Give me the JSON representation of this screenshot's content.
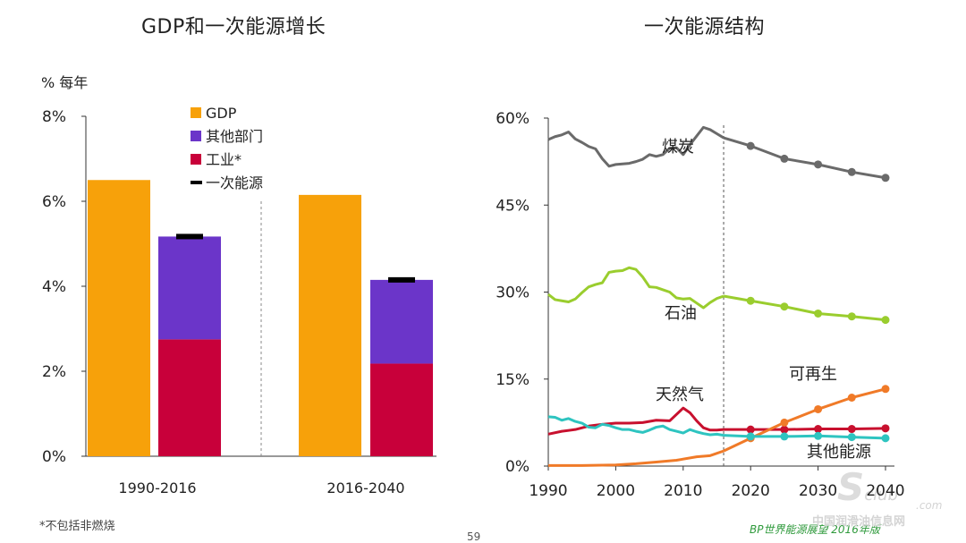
{
  "left": {
    "title": "GDP和一次能源增长",
    "unit": "% 每年",
    "footnote": "*不包括非燃烧"
  },
  "right": {
    "title": "一次能源结构"
  },
  "source": "BP世界能源展望 2016年版",
  "page_number": "59",
  "watermark": {
    "logo": "S",
    "logo_suffix": "club",
    "logo_domain": ".com",
    "text": "中国润滑油信息网"
  },
  "colors": {
    "gdp": "#F7A10A",
    "other": "#6B35C9",
    "industry": "#C8003A",
    "primary": "#000000",
    "coal": "#6a6a6a",
    "oil": "#9ACD2E",
    "gas": "#C8102E",
    "renew": "#F07A28",
    "others": "#2EC4C0"
  },
  "chart_data": [
    {
      "type": "bar",
      "title": "GDP和一次能源增长",
      "ylabel": "% 每年",
      "ylim": [
        0,
        8
      ],
      "yticks": [
        0,
        2,
        4,
        6,
        8
      ],
      "ytick_labels": [
        "0%",
        "2%",
        "4%",
        "6%",
        "8%"
      ],
      "groups": [
        "1990-2016",
        "2016-2040"
      ],
      "legend": [
        "GDP",
        "其他部门",
        "工业*",
        "一次能源"
      ],
      "series": [
        {
          "name": "GDP",
          "values": [
            6.5,
            6.15
          ]
        },
        {
          "name": "工业*",
          "values": [
            2.75,
            2.18
          ]
        },
        {
          "name": "其他部门",
          "values": [
            2.42,
            1.97
          ]
        },
        {
          "name": "一次能源",
          "values": [
            5.17,
            4.15
          ]
        }
      ]
    },
    {
      "type": "line",
      "title": "一次能源结构",
      "ylim": [
        0,
        60
      ],
      "xlim": [
        1990,
        2040
      ],
      "yticks": [
        0,
        15,
        30,
        45,
        60
      ],
      "ytick_labels": [
        "0%",
        "15%",
        "30%",
        "45%",
        "60%"
      ],
      "xticks": [
        1990,
        2000,
        2010,
        2020,
        2030,
        2040
      ],
      "xtick_labels": [
        "1990",
        "2000",
        "2010",
        "2020",
        "2030",
        "2040"
      ],
      "divider_year": 2016,
      "series": [
        {
          "name": "煤炭",
          "label": "煤炭",
          "hist_x": [
            1990,
            1991,
            1992,
            1993,
            1994,
            1995,
            1996,
            1997,
            1998,
            1999,
            2000,
            2001,
            2002,
            2003,
            2004,
            2005,
            2006,
            2007,
            2008,
            2009,
            2010,
            2011,
            2012,
            2013,
            2014,
            2015,
            2016
          ],
          "hist_y": [
            56.3,
            56.8,
            57.1,
            57.6,
            56.4,
            55.8,
            55.1,
            54.7,
            53.0,
            51.7,
            52.0,
            52.1,
            52.2,
            52.5,
            52.9,
            53.7,
            53.4,
            53.7,
            54.8,
            54.9,
            53.7,
            55.4,
            56.9,
            58.4,
            58.0,
            57.3,
            56.6
          ],
          "proj_x": [
            2016,
            2020,
            2025,
            2030,
            2035,
            2040
          ],
          "proj_y": [
            56.6,
            55.2,
            53.0,
            52.0,
            50.7,
            49.7
          ]
        },
        {
          "name": "石油",
          "label": "石油",
          "hist_x": [
            1990,
            1991,
            1992,
            1993,
            1994,
            1995,
            1996,
            1997,
            1998,
            1999,
            2000,
            2001,
            2002,
            2003,
            2004,
            2005,
            2006,
            2007,
            2008,
            2009,
            2010,
            2011,
            2012,
            2013,
            2014,
            2015,
            2016
          ],
          "hist_y": [
            29.6,
            28.7,
            28.5,
            28.3,
            28.8,
            29.9,
            30.9,
            31.3,
            31.6,
            33.4,
            33.6,
            33.7,
            34.2,
            33.9,
            32.6,
            30.9,
            30.8,
            30.4,
            30.0,
            29.0,
            28.8,
            28.9,
            28.1,
            27.3,
            28.2,
            28.9,
            29.3
          ],
          "proj_x": [
            2016,
            2020,
            2025,
            2030,
            2035,
            2040
          ],
          "proj_y": [
            29.3,
            28.5,
            27.5,
            26.3,
            25.8,
            25.2
          ]
        },
        {
          "name": "天然气",
          "label": "天然气",
          "hist_x": [
            1990,
            1992,
            1994,
            1996,
            1998,
            2000,
            2002,
            2004,
            2006,
            2008,
            2009,
            2010,
            2011,
            2012,
            2013,
            2014,
            2015,
            2016
          ],
          "hist_y": [
            5.5,
            6.0,
            6.3,
            6.9,
            7.2,
            7.4,
            7.4,
            7.5,
            7.9,
            7.8,
            8.9,
            10.0,
            9.2,
            7.8,
            6.6,
            6.2,
            6.2,
            6.3
          ],
          "proj_x": [
            2016,
            2020,
            2025,
            2030,
            2035,
            2040
          ],
          "proj_y": [
            6.3,
            6.3,
            6.3,
            6.4,
            6.4,
            6.5
          ]
        },
        {
          "name": "可再生",
          "label": "可再生",
          "hist_x": [
            1990,
            1995,
            2000,
            2003,
            2006,
            2009,
            2012,
            2014,
            2016
          ],
          "hist_y": [
            0.1,
            0.1,
            0.2,
            0.4,
            0.7,
            1.0,
            1.6,
            1.8,
            2.6
          ],
          "proj_x": [
            2016,
            2020,
            2025,
            2030,
            2035,
            2040
          ],
          "proj_y": [
            2.6,
            4.8,
            7.5,
            9.8,
            11.8,
            13.3
          ]
        },
        {
          "name": "其他能源",
          "label": "其他能源",
          "hist_x": [
            1990,
            1991,
            1992,
            1993,
            1994,
            1995,
            1996,
            1997,
            1998,
            1999,
            2000,
            2001,
            2002,
            2003,
            2004,
            2005,
            2006,
            2007,
            2008,
            2009,
            2010,
            2011,
            2012,
            2013,
            2014,
            2015,
            2016
          ],
          "hist_y": [
            8.5,
            8.4,
            7.9,
            8.2,
            7.7,
            7.4,
            6.7,
            6.6,
            7.2,
            7.0,
            6.6,
            6.3,
            6.3,
            6.0,
            5.8,
            6.2,
            6.7,
            6.9,
            6.3,
            6.0,
            5.7,
            6.3,
            5.9,
            5.6,
            5.4,
            5.5,
            5.3
          ],
          "proj_x": [
            2016,
            2020,
            2025,
            2030,
            2035,
            2040
          ],
          "proj_y": [
            5.3,
            5.1,
            5.1,
            5.2,
            5.0,
            4.8
          ]
        }
      ]
    }
  ]
}
